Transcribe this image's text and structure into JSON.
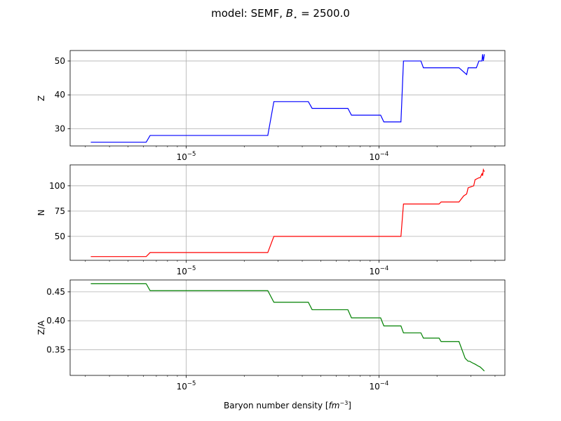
{
  "figure": {
    "title_prefix": "model: SEMF, ",
    "title_B": "B",
    "title_star": "⋆",
    "title_suffix": " = 2500.0",
    "xlabel_prefix": "Baryon number density [",
    "xlabel_unit_base": "fm",
    "xlabel_unit_exp": "−3",
    "xlabel_suffix": "]"
  },
  "chart_data": [
    {
      "type": "line",
      "ylabel": "Z",
      "color": "#0000ff",
      "xscale": "log",
      "xlim": [
        2.5e-06,
        0.00045
      ],
      "ylim": [
        24.9,
        53.1
      ],
      "yticks": [
        30,
        40,
        50
      ],
      "xticks": [
        {
          "value": 1e-05,
          "base": "10",
          "exp": "−5"
        },
        {
          "value": 0.0001,
          "base": "10",
          "exp": "−4"
        }
      ],
      "grid": true,
      "series": [
        {
          "x": [
            3.2e-06,
            6.2e-06,
            6.5e-06,
            2.65e-05,
            2.85e-05,
            4.3e-05,
            4.5e-05,
            6.9e-05,
            7.2e-05,
            0.000102,
            0.000106,
            0.00013,
            0.000134,
            0.000165,
            0.00017,
            0.00026,
            0.000285,
            0.00029,
            0.00032,
            0.00033,
            0.000335,
            0.000342,
            0.000345,
            0.000348,
            0.000352
          ],
          "y": [
            26,
            26,
            28,
            28,
            38,
            38,
            36,
            36,
            34,
            34,
            32,
            32,
            50,
            50,
            48,
            48,
            46,
            48,
            48,
            50,
            50,
            50,
            52,
            50,
            52
          ]
        }
      ]
    },
    {
      "type": "line",
      "ylabel": "N",
      "color": "#ff0000",
      "xscale": "log",
      "xlim": [
        2.5e-06,
        0.00045
      ],
      "ylim": [
        26.3,
        120.7
      ],
      "yticks": [
        50,
        75,
        100
      ],
      "xticks": [
        {
          "value": 1e-05,
          "base": "10",
          "exp": "−5"
        },
        {
          "value": 0.0001,
          "base": "10",
          "exp": "−4"
        }
      ],
      "grid": true,
      "series": [
        {
          "x": [
            3.2e-06,
            6.2e-06,
            6.5e-06,
            2.65e-05,
            2.85e-05,
            4.3e-05,
            4.5e-05,
            6.9e-05,
            7.2e-05,
            0.000102,
            0.000106,
            0.00013,
            0.000134,
            0.000165,
            0.00017,
            0.000205,
            0.00021,
            0.00026,
            0.000275,
            0.000285,
            0.00029,
            0.00031,
            0.000315,
            0.00033,
            0.000335,
            0.000342,
            0.000345,
            0.000348,
            0.000352
          ],
          "y": [
            30,
            30,
            34,
            34,
            50,
            50,
            50,
            50,
            50,
            50,
            50,
            50,
            82,
            82,
            82,
            82,
            84,
            84,
            90,
            92,
            98,
            100,
            106,
            108,
            108,
            112,
            110,
            116,
            114
          ]
        }
      ]
    },
    {
      "type": "line",
      "ylabel": "Z/A",
      "color": "#008000",
      "xscale": "log",
      "xlim": [
        2.5e-06,
        0.00045
      ],
      "ylim": [
        0.3055,
        0.4705
      ],
      "yticks": [
        0.35,
        0.4,
        0.45
      ],
      "yticklabels": [
        "0.35",
        "0.40",
        "0.45"
      ],
      "xticks": [
        {
          "value": 1e-05,
          "base": "10",
          "exp": "−5"
        },
        {
          "value": 0.0001,
          "base": "10",
          "exp": "−4"
        }
      ],
      "grid": true,
      "series": [
        {
          "x": [
            3.2e-06,
            6.2e-06,
            6.5e-06,
            2.65e-05,
            2.85e-05,
            4.3e-05,
            4.5e-05,
            6.9e-05,
            7.2e-05,
            0.000102,
            0.000106,
            0.00013,
            0.000134,
            0.000165,
            0.00017,
            0.000205,
            0.00021,
            0.00026,
            0.00028,
            0.00029,
            0.000295,
            0.00031,
            0.000315,
            0.00033,
            0.000335,
            0.000345,
            0.000352
          ],
          "y": [
            0.464,
            0.464,
            0.452,
            0.452,
            0.432,
            0.432,
            0.419,
            0.419,
            0.405,
            0.405,
            0.391,
            0.391,
            0.379,
            0.379,
            0.37,
            0.37,
            0.364,
            0.364,
            0.335,
            0.33,
            0.33,
            0.326,
            0.325,
            0.321,
            0.32,
            0.316,
            0.313
          ]
        }
      ]
    }
  ]
}
